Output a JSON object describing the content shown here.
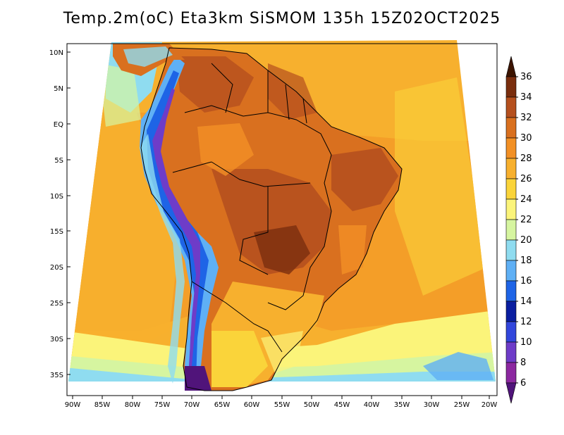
{
  "title": "Temp.2m(oC) Eta3km SiSMOM 135h 15Z02OCT2025",
  "lat_labels": [
    "10N",
    "5N",
    "EQ",
    "5S",
    "10S",
    "15S",
    "20S",
    "25S",
    "30S",
    "35S"
  ],
  "lon_labels": [
    "90W",
    "85W",
    "80W",
    "75W",
    "70W",
    "65W",
    "60W",
    "55W",
    "50W",
    "45W",
    "40W",
    "35W",
    "30W",
    "25W",
    "20W"
  ],
  "colorbar": {
    "labels": [
      "36",
      "34",
      "32",
      "30",
      "28",
      "26",
      "24",
      "22",
      "20",
      "18",
      "16",
      "14",
      "12",
      "10",
      "8",
      "6"
    ],
    "colors": [
      "#3c1400",
      "#7a2e0e",
      "#b5501e",
      "#d9701f",
      "#f29025",
      "#f7b02e",
      "#fad43a",
      "#fbf47a",
      "#d6f5a0",
      "#8fdcf0",
      "#5fb0f5",
      "#1e64e6",
      "#0a1ea0",
      "#3246dc",
      "#6e3cc8",
      "#8c28a0",
      "#50147a"
    ]
  },
  "units": "oC"
}
